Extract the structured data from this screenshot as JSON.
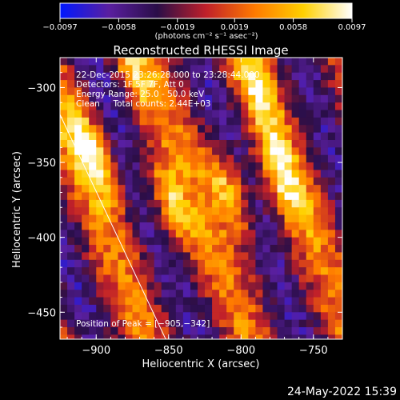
{
  "chart_data": {
    "type": "heatmap",
    "title": "Reconstructed RHESSI Image",
    "xlabel": "Heliocentric X (arcsec)",
    "ylabel": "Heliocentric Y (arcsec)",
    "xlim": [
      -925,
      -730
    ],
    "ylim": [
      -468,
      -280
    ],
    "x_ticks": [
      -900,
      -850,
      -800,
      -750
    ],
    "y_ticks": [
      -450,
      -400,
      -350,
      -300
    ],
    "x_tick_labels": [
      "−900",
      "−850",
      "−800",
      "−750"
    ],
    "y_tick_labels": [
      "−450",
      "−400",
      "−350",
      "−300"
    ],
    "colorbar": {
      "min": -0.0097,
      "max": 0.0097,
      "ticks": [
        -0.0097,
        -0.0058,
        -0.0019,
        0.0019,
        0.0058,
        0.0097
      ],
      "tick_labels": [
        "−0.0097",
        "−0.0058",
        "−0.0019",
        "0.0019",
        "0.0058",
        "0.0097"
      ],
      "units": "(photons cm⁻² s⁻¹ asec⁻²)",
      "colors": [
        "#0018ff",
        "#5a1fa0",
        "#2a0e48",
        "#c0202a",
        "#ff7a00",
        "#ffd000",
        "#ffffff"
      ]
    },
    "annotations": [
      "22-Dec-2015 23:26:28.000 to 23:28:44.000",
      "Detectors: 1F 5F 7F, Att 0",
      "Energy Range: 25.0 - 50.0 keV",
      "Clean     Total counts: 2.44E+03"
    ],
    "peak_label": "Position of Peak = [−905,−342]",
    "peak": [
      -905,
      -342
    ],
    "limb_line": [
      [
        -925,
        -318
      ],
      [
        -852,
        -468
      ]
    ],
    "sources": [
      {
        "x": -905,
        "y": -342,
        "value": 0.0097
      },
      {
        "x": -849,
        "y": -379,
        "value": 0.0085
      },
      {
        "x": -809,
        "y": -368,
        "value": 0.0095
      },
      {
        "x": -770,
        "y": -360,
        "value": 0.007
      },
      {
        "x": -790,
        "y": -300,
        "value": 0.006
      },
      {
        "x": -875,
        "y": -288,
        "value": 0.0055
      }
    ],
    "grid": false
  },
  "footer": {
    "date_stamp": "24-May-2022 15:39"
  }
}
